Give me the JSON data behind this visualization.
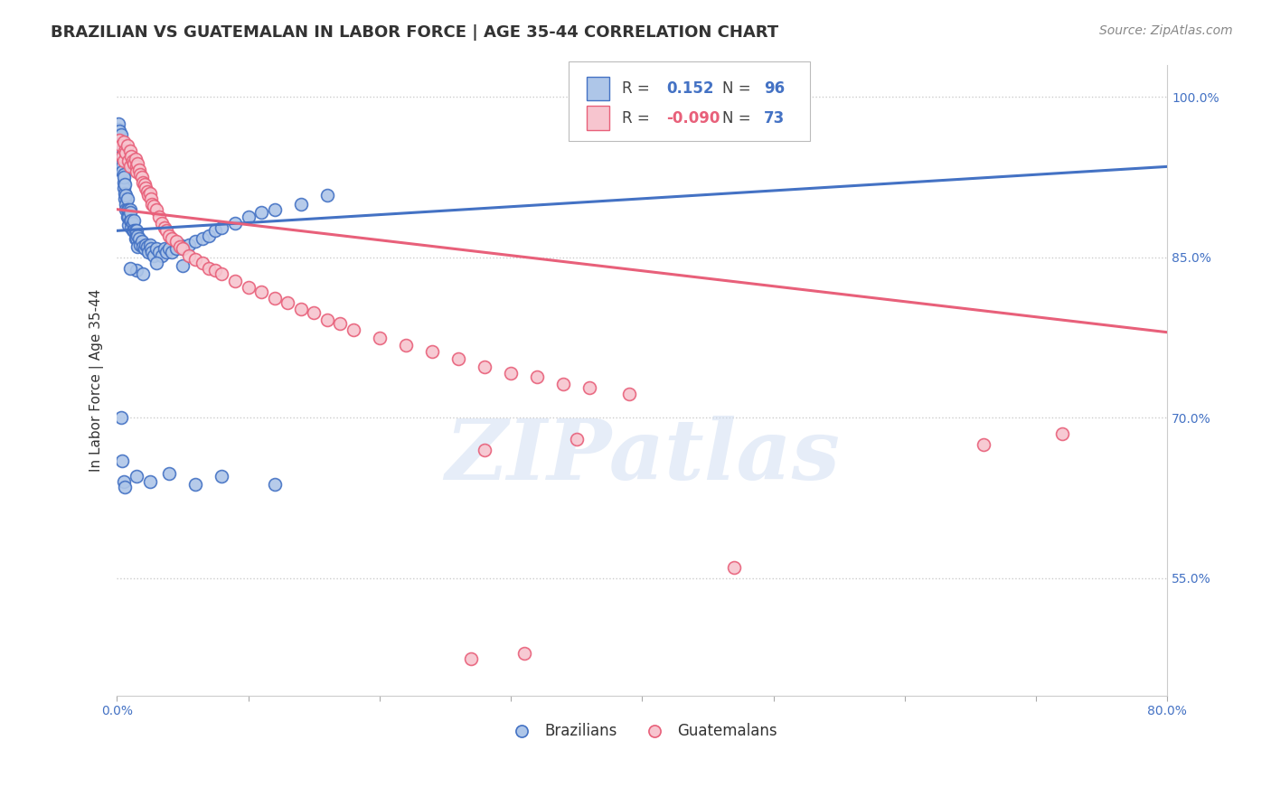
{
  "title": "BRAZILIAN VS GUATEMALAN IN LABOR FORCE | AGE 35-44 CORRELATION CHART",
  "source_text": "Source: ZipAtlas.com",
  "ylabel": "In Labor Force | Age 35-44",
  "xlim": [
    0.0,
    0.8
  ],
  "ylim": [
    0.44,
    1.03
  ],
  "xtick_positions": [
    0.0,
    0.1,
    0.2,
    0.3,
    0.4,
    0.5,
    0.6,
    0.7,
    0.8
  ],
  "ytick_positions": [
    0.55,
    0.7,
    0.85,
    1.0
  ],
  "ytick_labels": [
    "55.0%",
    "70.0%",
    "85.0%",
    "100.0%"
  ],
  "grid_color": "#cccccc",
  "background_color": "#ffffff",
  "blue_color": "#4472C4",
  "blue_fill": "#aec6e8",
  "pink_color": "#e8607a",
  "pink_fill": "#f7c5cf",
  "blue_trend_x": [
    0.0,
    0.8
  ],
  "blue_trend_y": [
    0.875,
    0.935
  ],
  "pink_trend_x": [
    0.0,
    0.8
  ],
  "pink_trend_y": [
    0.895,
    0.78
  ],
  "blue_scatter_x": [
    0.001,
    0.001,
    0.001,
    0.001,
    0.002,
    0.002,
    0.002,
    0.002,
    0.003,
    0.003,
    0.003,
    0.003,
    0.004,
    0.004,
    0.004,
    0.005,
    0.005,
    0.005,
    0.005,
    0.006,
    0.006,
    0.006,
    0.007,
    0.007,
    0.007,
    0.008,
    0.008,
    0.008,
    0.009,
    0.009,
    0.009,
    0.01,
    0.01,
    0.01,
    0.011,
    0.011,
    0.012,
    0.012,
    0.013,
    0.013,
    0.014,
    0.014,
    0.015,
    0.015,
    0.016,
    0.016,
    0.017,
    0.018,
    0.019,
    0.02,
    0.021,
    0.022,
    0.023,
    0.024,
    0.025,
    0.026,
    0.027,
    0.028,
    0.03,
    0.032,
    0.034,
    0.036,
    0.038,
    0.04,
    0.042,
    0.045,
    0.048,
    0.05,
    0.055,
    0.06,
    0.065,
    0.07,
    0.075,
    0.08,
    0.09,
    0.1,
    0.11,
    0.12,
    0.14,
    0.16,
    0.003,
    0.004,
    0.005,
    0.006,
    0.015,
    0.025,
    0.04,
    0.06,
    0.08,
    0.12,
    0.03,
    0.05,
    0.015,
    0.02,
    0.01,
    0.45
  ],
  "blue_scatter_y": [
    0.963,
    0.957,
    0.97,
    0.975,
    0.96,
    0.95,
    0.968,
    0.955,
    0.95,
    0.965,
    0.94,
    0.945,
    0.935,
    0.93,
    0.945,
    0.92,
    0.928,
    0.915,
    0.925,
    0.91,
    0.905,
    0.918,
    0.9,
    0.908,
    0.895,
    0.905,
    0.895,
    0.888,
    0.895,
    0.888,
    0.88,
    0.895,
    0.885,
    0.892,
    0.885,
    0.878,
    0.882,
    0.875,
    0.885,
    0.875,
    0.875,
    0.868,
    0.875,
    0.868,
    0.87,
    0.86,
    0.868,
    0.862,
    0.865,
    0.86,
    0.858,
    0.862,
    0.86,
    0.855,
    0.862,
    0.858,
    0.855,
    0.852,
    0.858,
    0.855,
    0.852,
    0.858,
    0.855,
    0.858,
    0.855,
    0.858,
    0.862,
    0.858,
    0.862,
    0.865,
    0.868,
    0.87,
    0.875,
    0.878,
    0.882,
    0.888,
    0.892,
    0.895,
    0.9,
    0.908,
    0.7,
    0.66,
    0.64,
    0.635,
    0.645,
    0.64,
    0.648,
    0.638,
    0.645,
    0.638,
    0.845,
    0.842,
    0.838,
    0.835,
    0.84,
    0.98
  ],
  "pink_scatter_x": [
    0.002,
    0.003,
    0.004,
    0.005,
    0.005,
    0.006,
    0.007,
    0.008,
    0.009,
    0.01,
    0.01,
    0.011,
    0.012,
    0.013,
    0.014,
    0.015,
    0.015,
    0.016,
    0.017,
    0.018,
    0.019,
    0.02,
    0.021,
    0.022,
    0.023,
    0.024,
    0.025,
    0.026,
    0.027,
    0.028,
    0.03,
    0.032,
    0.034,
    0.036,
    0.038,
    0.04,
    0.042,
    0.045,
    0.048,
    0.05,
    0.055,
    0.06,
    0.065,
    0.07,
    0.075,
    0.08,
    0.09,
    0.1,
    0.11,
    0.12,
    0.13,
    0.14,
    0.15,
    0.16,
    0.17,
    0.18,
    0.2,
    0.22,
    0.24,
    0.26,
    0.28,
    0.3,
    0.32,
    0.34,
    0.36,
    0.39,
    0.28,
    0.35,
    0.47,
    0.66,
    0.72,
    0.27,
    0.31
  ],
  "pink_scatter_y": [
    0.96,
    0.955,
    0.945,
    0.94,
    0.958,
    0.95,
    0.948,
    0.955,
    0.94,
    0.95,
    0.935,
    0.945,
    0.94,
    0.938,
    0.942,
    0.935,
    0.93,
    0.938,
    0.932,
    0.928,
    0.925,
    0.92,
    0.918,
    0.915,
    0.912,
    0.908,
    0.91,
    0.905,
    0.9,
    0.898,
    0.895,
    0.888,
    0.882,
    0.878,
    0.875,
    0.87,
    0.868,
    0.865,
    0.86,
    0.858,
    0.852,
    0.848,
    0.845,
    0.84,
    0.838,
    0.835,
    0.828,
    0.822,
    0.818,
    0.812,
    0.808,
    0.802,
    0.798,
    0.792,
    0.788,
    0.782,
    0.775,
    0.768,
    0.762,
    0.755,
    0.748,
    0.742,
    0.738,
    0.732,
    0.728,
    0.722,
    0.67,
    0.68,
    0.56,
    0.675,
    0.685,
    0.475,
    0.48
  ],
  "watermark_text": "ZIPatlas",
  "title_color": "#333333",
  "axis_label_color": "#333333",
  "tick_color": "#4472C4",
  "source_color": "#888888",
  "title_fontsize": 13,
  "axis_label_fontsize": 11,
  "tick_fontsize": 10,
  "legend_fontsize": 12,
  "source_fontsize": 10,
  "marker_size": 100,
  "marker_edge_width": 1.2
}
